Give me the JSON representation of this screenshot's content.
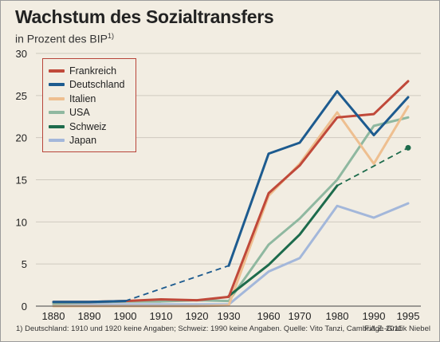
{
  "header": {
    "title": "Wachstum des Sozialtransfers",
    "subtitle": "in Prozent des BIP",
    "subtitle_note": "1)"
  },
  "footer": {
    "footnote": "1) Deutschland: 1910 und 1920 keine Angaben; Schweiz: 1990 keine Angaben. Quelle: Vito Tanzi, Cambridge 2011",
    "credit": "F.A.Z.-Grafik Niebel"
  },
  "chart_data": {
    "type": "line",
    "title": "Wachstum des Sozialtransfers",
    "subtitle": "in Prozent des BIP",
    "x_categories": [
      "1880",
      "1890",
      "1900",
      "1910",
      "1920",
      "1930",
      "1960",
      "1970",
      "1980",
      "1990",
      "1995"
    ],
    "y_ticks": [
      0,
      5,
      10,
      15,
      20,
      25,
      30
    ],
    "ylim": [
      0,
      30
    ],
    "grid": true,
    "legend_position": "top-left",
    "series": [
      {
        "name": "Frankreich",
        "color": "#c0493a",
        "points": [
          [
            1880,
            0.5
          ],
          [
            1890,
            0.5
          ],
          [
            1900,
            0.6
          ],
          [
            1910,
            0.8
          ],
          [
            1920,
            0.7
          ],
          [
            1930,
            1.1
          ],
          [
            1960,
            13.4
          ],
          [
            1970,
            16.7
          ],
          [
            1980,
            22.4
          ],
          [
            1990,
            22.8
          ],
          [
            1995,
            26.7
          ]
        ]
      },
      {
        "name": "Deutschland",
        "color": "#1d5b8f",
        "points": [
          [
            1880,
            0.5
          ],
          [
            1890,
            0.5
          ],
          [
            1900,
            0.6
          ],
          [
            1930,
            4.8
          ],
          [
            1960,
            18.1
          ],
          [
            1970,
            19.4
          ],
          [
            1980,
            25.5
          ],
          [
            1990,
            20.3
          ],
          [
            1995,
            24.8
          ]
        ],
        "dashed_segments": [
          [
            1900,
            1930
          ]
        ]
      },
      {
        "name": "Italien",
        "color": "#eebf90",
        "points": [
          [
            1880,
            0.0
          ],
          [
            1890,
            0.0
          ],
          [
            1900,
            0.0
          ],
          [
            1910,
            0.0
          ],
          [
            1920,
            0.0
          ],
          [
            1930,
            0.1
          ],
          [
            1960,
            13.1
          ],
          [
            1970,
            16.9
          ],
          [
            1980,
            23.0
          ],
          [
            1990,
            16.9
          ],
          [
            1995,
            23.7
          ]
        ]
      },
      {
        "name": "USA",
        "color": "#8fb8a0",
        "points": [
          [
            1880,
            0.3
          ],
          [
            1890,
            0.45
          ],
          [
            1900,
            0.55
          ],
          [
            1910,
            0.55
          ],
          [
            1920,
            0.7
          ],
          [
            1930,
            0.6
          ],
          [
            1960,
            7.3
          ],
          [
            1970,
            10.4
          ],
          [
            1980,
            15.0
          ],
          [
            1990,
            21.4
          ],
          [
            1995,
            22.4
          ]
        ]
      },
      {
        "name": "Schweiz",
        "color": "#1d6b4c",
        "points": [
          [
            1930,
            1.2
          ],
          [
            1960,
            4.9
          ],
          [
            1970,
            8.5
          ],
          [
            1980,
            14.3
          ],
          [
            1995,
            18.8
          ]
        ],
        "dashed_segments": [
          [
            1980,
            1995
          ]
        ]
      },
      {
        "name": "Japan",
        "color": "#a3b7da",
        "points": [
          [
            1880,
            0.2
          ],
          [
            1890,
            0.2
          ],
          [
            1900,
            0.2
          ],
          [
            1910,
            0.2
          ],
          [
            1920,
            0.2
          ],
          [
            1930,
            0.2
          ],
          [
            1960,
            4.1
          ],
          [
            1970,
            5.7
          ],
          [
            1980,
            11.9
          ],
          [
            1990,
            10.5
          ],
          [
            1995,
            12.2
          ]
        ]
      }
    ]
  }
}
